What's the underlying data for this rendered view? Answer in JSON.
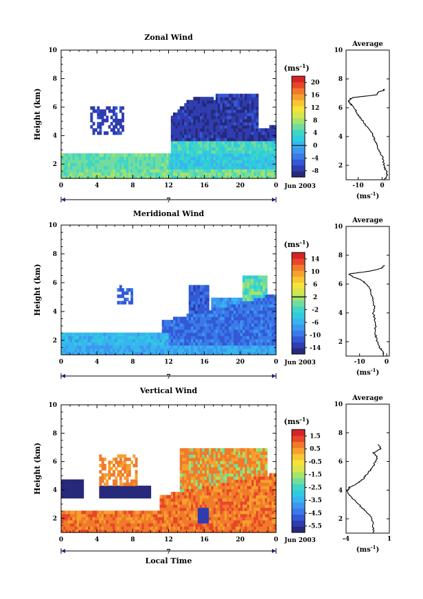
{
  "chart_data": [
    {
      "type": "heatmap",
      "title": "Zonal Wind",
      "ylabel": "Height (km)",
      "xlabel": "",
      "ylim": [
        1,
        10
      ],
      "yticks": [
        "2",
        "4",
        "6",
        "8",
        "10"
      ],
      "xlim": [
        0,
        24
      ],
      "xticks": [
        "0",
        "4",
        "8",
        "12",
        "16",
        "20",
        "0"
      ],
      "day_label": "7",
      "date_label": "Jun 2003",
      "colorbar": {
        "unit_base": "(ms",
        "unit_exp": "-1",
        "unit_close": ")",
        "ticks": [
          "20",
          "16",
          "12",
          "8",
          "4",
          "0",
          "-4",
          "-8"
        ],
        "range": [
          -10,
          22
        ],
        "marker": 0
      },
      "profile": {
        "title": "Average",
        "unit_base": "(ms",
        "unit_exp": "-1",
        "unit_close": ")",
        "xlim": [
          -15,
          3
        ],
        "xticks": [
          "-10",
          "0"
        ],
        "yticks": [
          "2",
          "4",
          "6",
          "8",
          "10"
        ],
        "height_km": [
          1.0,
          1.3,
          1.6,
          1.9,
          2.2,
          2.5,
          2.8,
          3.1,
          3.4,
          3.7,
          4.0,
          4.3,
          4.6,
          4.9,
          5.2,
          5.5,
          5.8,
          6.1,
          6.3,
          6.5,
          6.7,
          6.9,
          7.1,
          7.2,
          7.3
        ],
        "speed": [
          1.0,
          2.0,
          1.8,
          0.8,
          0.5,
          0.3,
          -0.5,
          -1.5,
          -2.0,
          -3.0,
          -3.5,
          -4.5,
          -6.0,
          -7.5,
          -8.5,
          -10.0,
          -11.0,
          -12.0,
          -13.5,
          -14.0,
          -12.5,
          -2.0,
          -1.5,
          0.5,
          1.0
        ]
      }
    },
    {
      "type": "heatmap",
      "title": "Meridional Wind",
      "ylabel": "Height (km)",
      "xlabel": "",
      "ylim": [
        1,
        10
      ],
      "yticks": [
        "2",
        "4",
        "6",
        "8",
        "10"
      ],
      "xlim": [
        0,
        24
      ],
      "xticks": [
        "0",
        "4",
        "8",
        "12",
        "16",
        "20",
        "0"
      ],
      "day_label": "7",
      "date_label": "Jun 2003",
      "colorbar": {
        "unit_base": "(ms",
        "unit_exp": "-1",
        "unit_close": ")",
        "ticks": [
          "14",
          "10",
          "6",
          "2",
          "-2",
          "-6",
          "-10",
          "-14"
        ],
        "range": [
          -16,
          16
        ],
        "marker": 2
      },
      "profile": {
        "title": "Average",
        "unit_base": "(ms",
        "unit_exp": "-1",
        "unit_close": ")",
        "xlim": [
          -15,
          1
        ],
        "xticks": [
          "-10",
          "0"
        ],
        "yticks": [
          "2",
          "4",
          "6",
          "8",
          "10"
        ],
        "height_km": [
          1.0,
          1.3,
          1.6,
          2.0,
          2.4,
          2.8,
          3.2,
          3.6,
          4.0,
          4.4,
          4.8,
          5.2,
          5.6,
          6.0,
          6.3,
          6.5,
          6.7,
          6.9,
          7.1,
          7.3
        ],
        "speed": [
          -1.0,
          -1.5,
          -2.5,
          -3.5,
          -4.0,
          -4.5,
          -4.0,
          -4.5,
          -5.0,
          -4.5,
          -5.0,
          -5.5,
          -6.0,
          -7.5,
          -9.5,
          -12.5,
          -14.0,
          -6.0,
          -2.0,
          -1.0
        ]
      }
    },
    {
      "type": "heatmap",
      "title": "Vertical Wind",
      "ylabel": "Height (km)",
      "xlabel": "Local Time",
      "ylim": [
        1,
        10
      ],
      "yticks": [
        "2",
        "4",
        "6",
        "8",
        "10"
      ],
      "xlim": [
        0,
        24
      ],
      "xticks": [
        "0",
        "4",
        "8",
        "12",
        "16",
        "20",
        "0"
      ],
      "day_label": "7",
      "date_label": "Jun 2003",
      "colorbar": {
        "unit_base": "(ms",
        "unit_exp": "-1",
        "unit_close": ")",
        "ticks": [
          "1.5",
          "0.5",
          "-0.5",
          "-1.5",
          "-2.5",
          "-3.5",
          "-4.5",
          "-5.5"
        ],
        "range": [
          -6,
          2
        ]
      },
      "profile": {
        "title": "Average",
        "unit_base": "(ms",
        "unit_exp": "-1",
        "unit_close": ")",
        "xlim": [
          -4,
          1
        ],
        "xticks": [
          "-4",
          "1"
        ],
        "yticks": [
          "2",
          "4",
          "6",
          "8",
          "10"
        ],
        "height_km": [
          1.0,
          1.5,
          2.0,
          2.4,
          2.8,
          3.2,
          3.6,
          3.9,
          4.2,
          4.5,
          4.8,
          5.1,
          5.4,
          5.7,
          6.0,
          6.3,
          6.6,
          6.9,
          7.2
        ],
        "speed": [
          -0.8,
          -0.9,
          -1.0,
          -1.5,
          -2.2,
          -2.9,
          -3.5,
          -3.9,
          -3.6,
          -2.6,
          -2.0,
          -1.6,
          -1.2,
          -0.8,
          -0.6,
          -0.4,
          -0.8,
          0.0,
          -0.3
        ]
      }
    }
  ]
}
